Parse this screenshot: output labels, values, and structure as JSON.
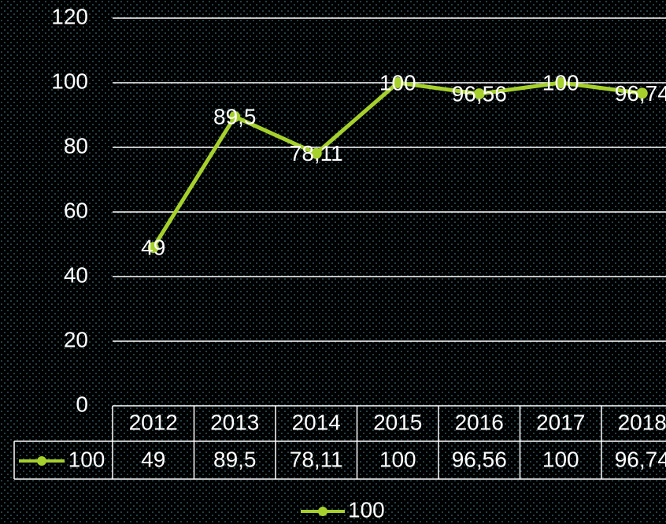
{
  "chart_data": {
    "type": "line",
    "categories": [
      "2012",
      "2013",
      "2014",
      "2015",
      "2016",
      "2017",
      "2018"
    ],
    "series": [
      {
        "name": "100",
        "color": "#a6d02c",
        "values": [
          49,
          89.5,
          78.11,
          100,
          96.56,
          100,
          96.74
        ],
        "value_labels": [
          "49",
          "89,5",
          "78,11",
          "100",
          "96,56",
          "100",
          "96,74"
        ]
      }
    ],
    "ylim": [
      0,
      120
    ],
    "yticks": [
      0,
      20,
      40,
      60,
      80,
      100,
      120
    ],
    "grid": true,
    "data_table": true,
    "legend": "bottom"
  }
}
